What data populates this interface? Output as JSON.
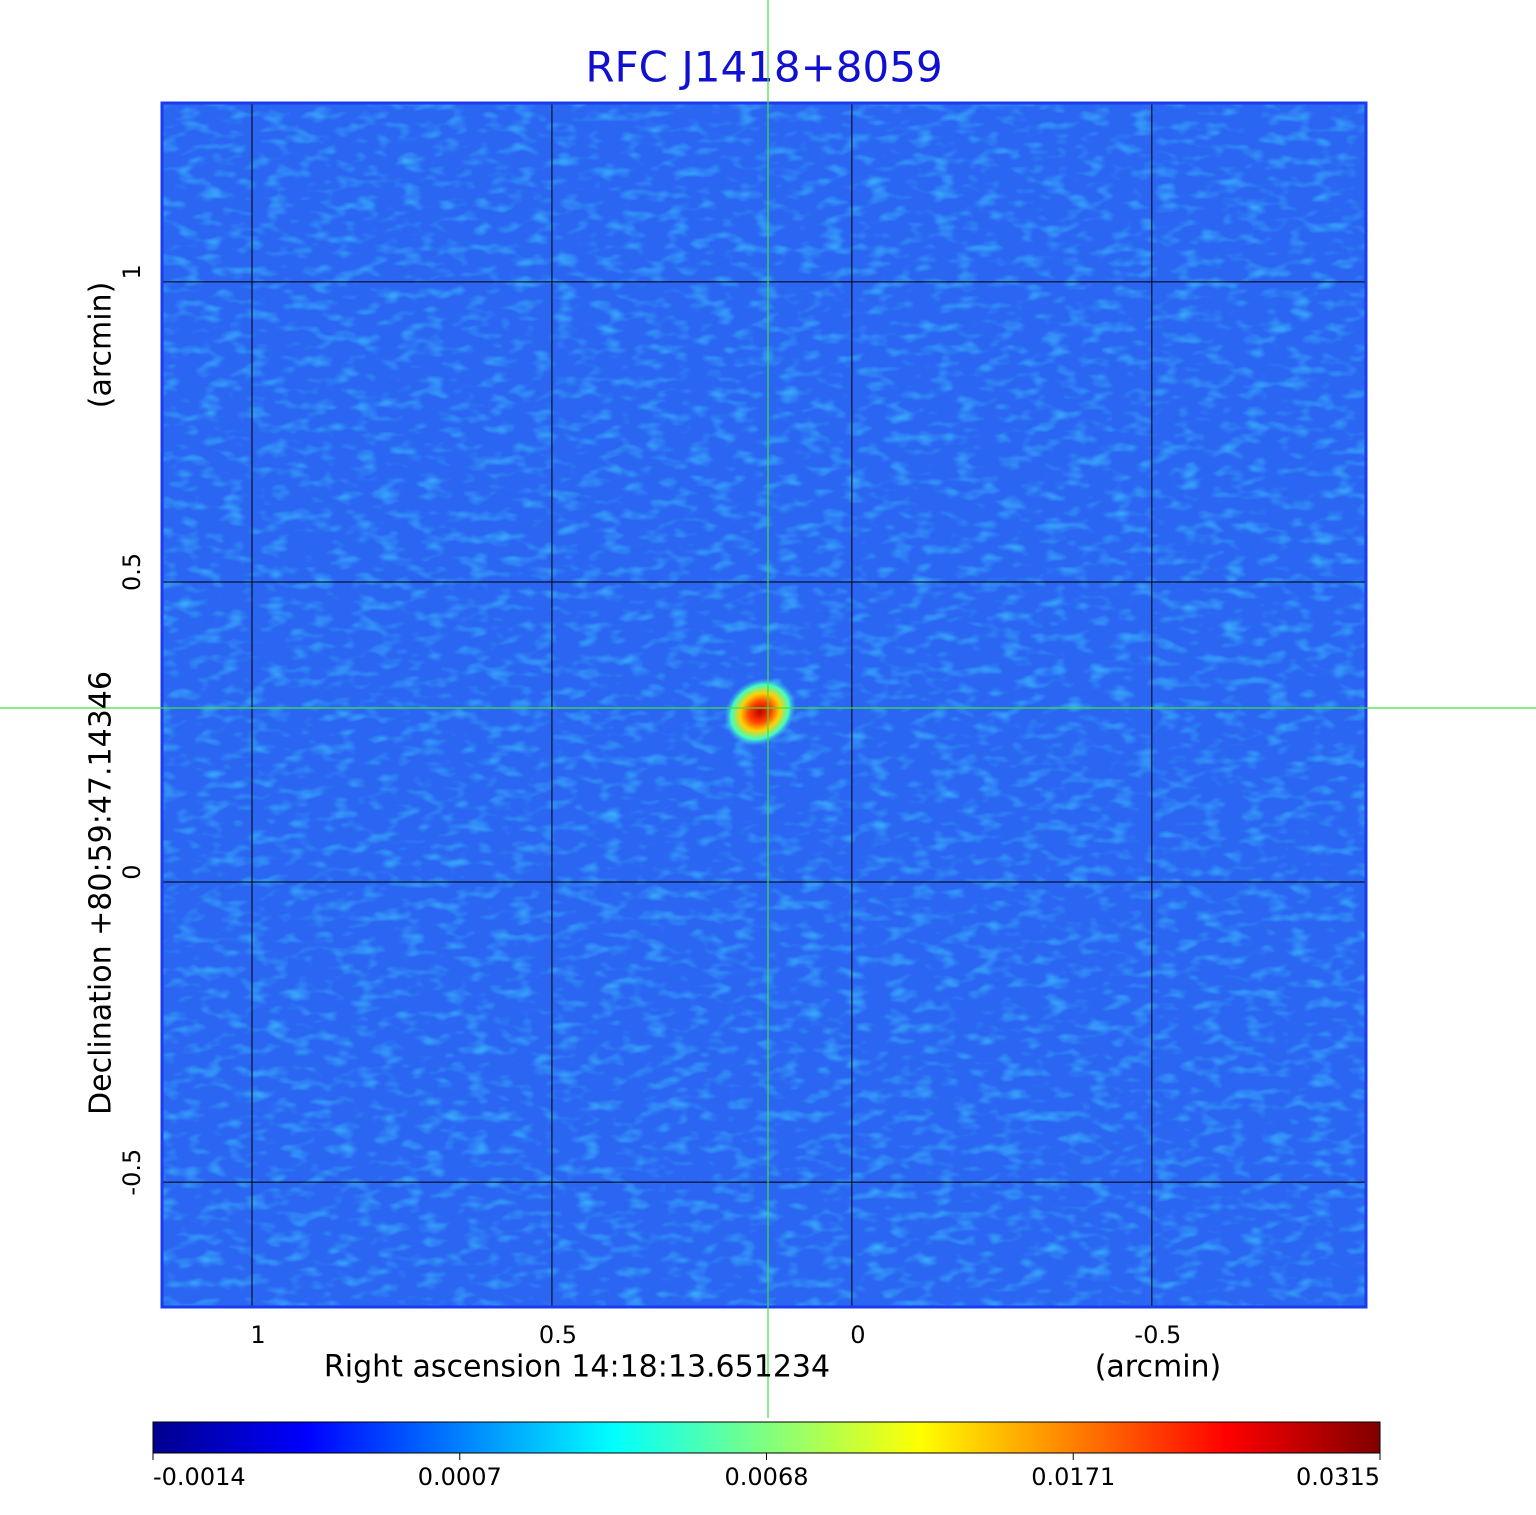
{
  "chart_data": {
    "type": "image",
    "title": "RFC J1418+8059",
    "x_label": "Right ascension  14:18:13.651234",
    "x_unit": "(arcmin)",
    "y_label": "Declination  +80:59:47.14346",
    "y_unit": "(arcmin)",
    "xlim": [
      1.15,
      -0.857
    ],
    "ylim": [
      -0.708,
      1.298
    ],
    "xticks": [
      1.0,
      0.5,
      0.0,
      -0.5
    ],
    "yticks": [
      -0.5,
      0.0,
      0.5,
      1.0
    ],
    "grid": true,
    "colorbar_ticks": [
      -0.0014,
      0.0007,
      0.0068,
      0.0171,
      0.0315
    ],
    "colormap": [
      "#00008f",
      "#0000ff",
      "#0080ff",
      "#00ffff",
      "#80ff80",
      "#ffff00",
      "#ff8000",
      "#ff0000",
      "#800000"
    ]
  }
}
